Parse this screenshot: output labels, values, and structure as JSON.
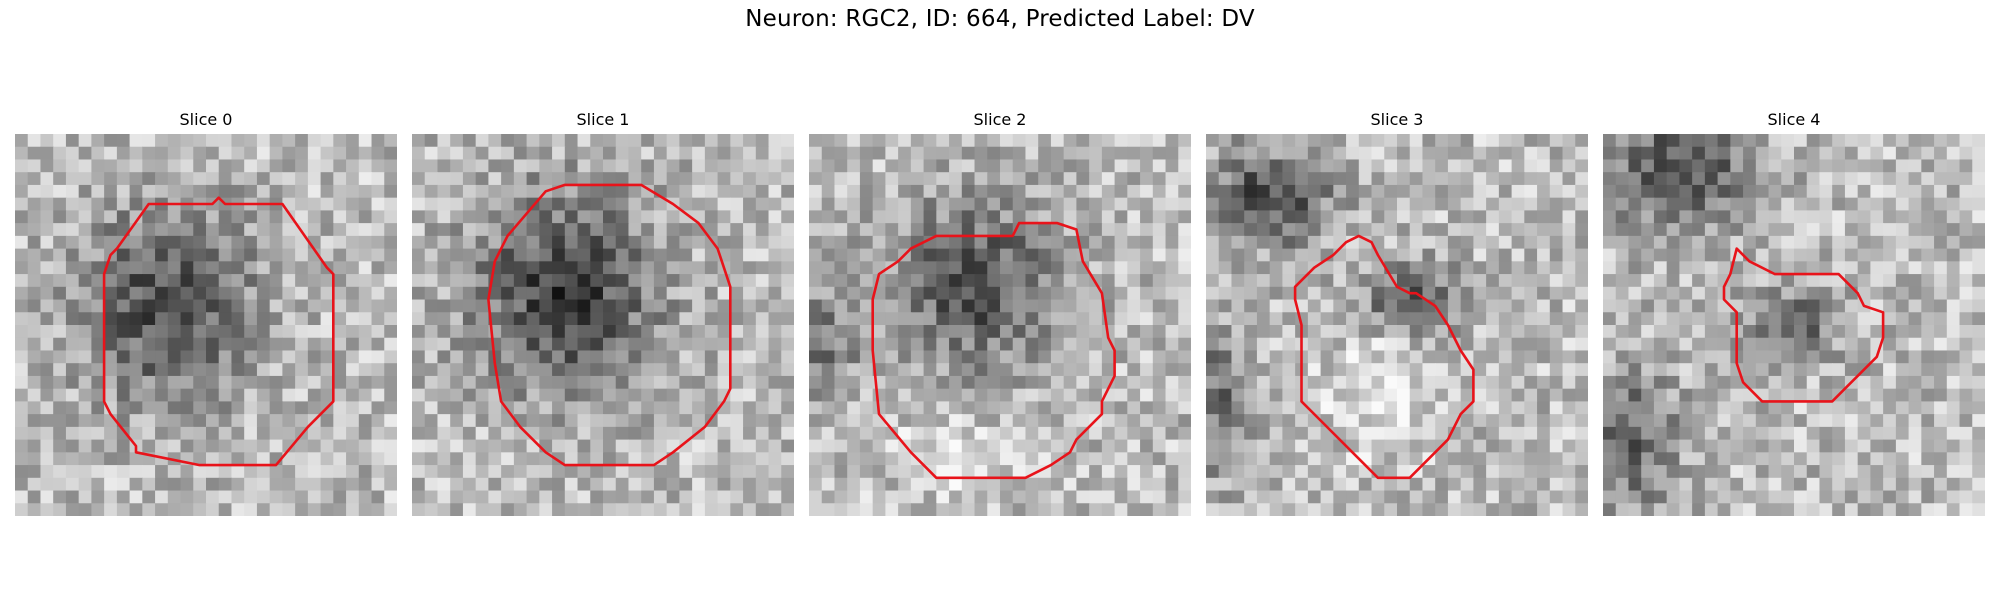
{
  "figure": {
    "suptitle": "Neuron: RGC2, ID: 664, Predicted Label: DV"
  },
  "image_grid": {
    "cols": 30,
    "rows": 30
  },
  "contour_color": "#e8131a",
  "panels": [
    {
      "title": "Slice 0"
    },
    {
      "title": "Slice 1"
    },
    {
      "title": "Slice 2"
    },
    {
      "title": "Slice 3"
    },
    {
      "title": "Slice 4"
    }
  ]
}
